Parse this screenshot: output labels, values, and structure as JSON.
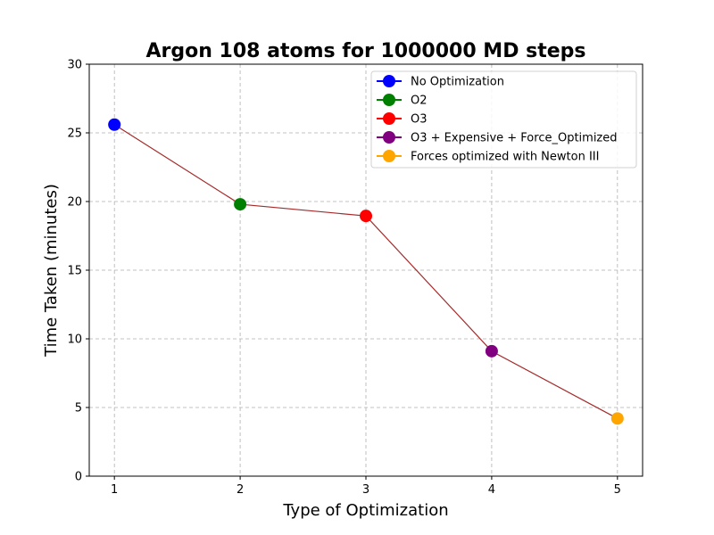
{
  "chart_data": {
    "type": "line",
    "title": "Argon 108 atoms for 1000000 MD steps",
    "xlabel": "Type of Optimization",
    "ylabel": "Time Taken (minutes)",
    "xlim": [
      0.8,
      5.2
    ],
    "ylim": [
      0,
      30
    ],
    "x_ticks": [
      1,
      2,
      3,
      4,
      5
    ],
    "y_ticks": [
      0,
      5,
      10,
      15,
      20,
      25,
      30
    ],
    "grid": true,
    "line_color": "#a52a2a",
    "legend_position": "top-right",
    "points": [
      {
        "x": 1,
        "y": 25.6,
        "label": "No Optimization",
        "color": "#0000ff"
      },
      {
        "x": 2,
        "y": 19.8,
        "label": "O2",
        "color": "#008000"
      },
      {
        "x": 3,
        "y": 18.95,
        "label": "O3",
        "color": "#ff0000"
      },
      {
        "x": 4,
        "y": 9.1,
        "label": "O3 + Expensive + Force_Optimized",
        "color": "#800080"
      },
      {
        "x": 5,
        "y": 4.2,
        "label": "Forces optimized with Newton III",
        "color": "#ffa500"
      }
    ]
  }
}
